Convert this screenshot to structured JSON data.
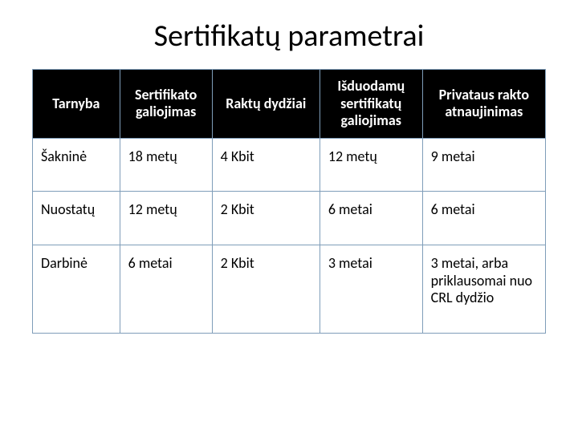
{
  "title": "Sertifikatų parametrai",
  "table": {
    "columns": [
      "Tarnyba",
      "Sertifikato galiojimas",
      "Raktų dydžiai",
      "Išduodamų sertifikatų galiojimas",
      "Privataus rakto atnaujinimas"
    ],
    "rows": [
      [
        "Šakninė",
        "18 metų",
        "4 Kbit",
        "12 metų",
        "9 metai"
      ],
      [
        "Nuostatų",
        "12 metų",
        "2 Kbit",
        "6 metai",
        "6 metai"
      ],
      [
        "Darbinė",
        "6 metai",
        "2 Kbit",
        "3 metai",
        "3 metai, arba priklausomai nuo CRL dydžio"
      ]
    ],
    "column_widths_pct": [
      17,
      18,
      21,
      20,
      24
    ],
    "header_bg": "#000000",
    "header_fg": "#ffffff",
    "cell_bg": "#ffffff",
    "cell_fg": "#000000",
    "border_color": "#7f9db9",
    "title_fontsize_pt": 38,
    "header_fontsize_pt": 18,
    "cell_fontsize_pt": 18,
    "background_color": "#ffffff"
  }
}
